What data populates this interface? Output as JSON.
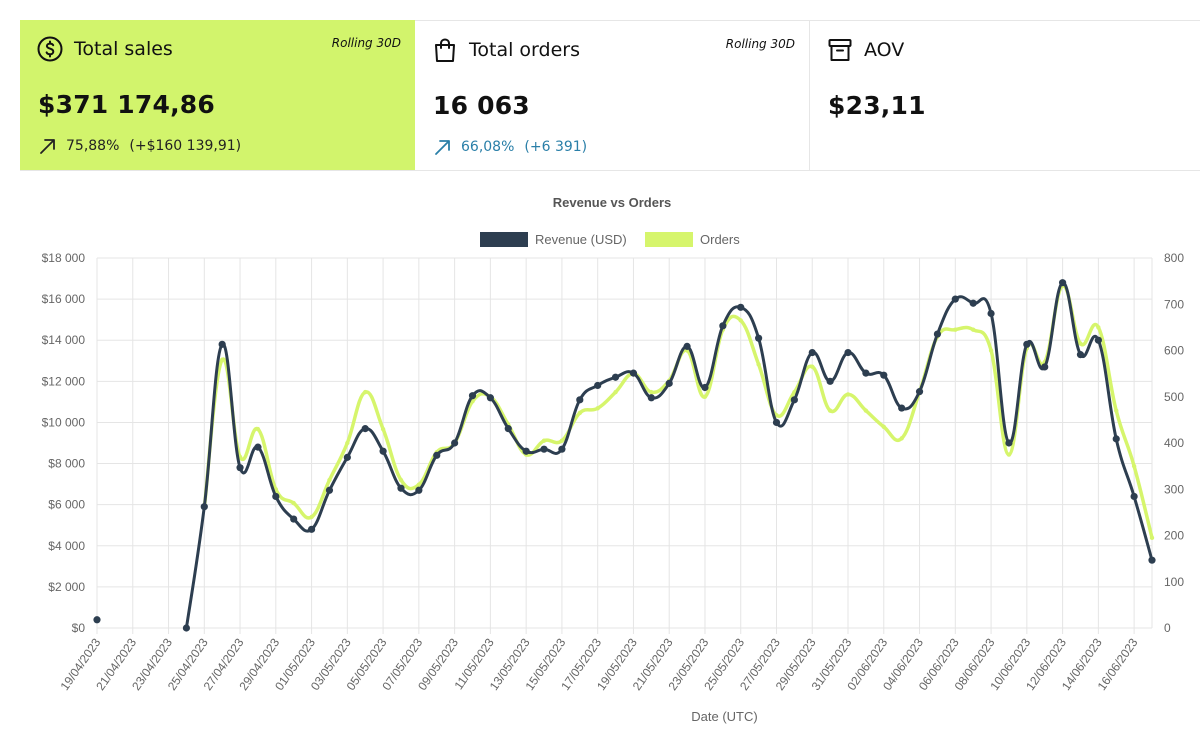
{
  "cards": [
    {
      "label": "Total sales",
      "rolling": "Rolling 30D",
      "value": "$371 174,86",
      "delta_pct": "75,88%",
      "delta_abs": "(+$160 139,91)",
      "icon": "dollar-circle-icon"
    },
    {
      "label": "Total orders",
      "rolling": "Rolling 30D",
      "value": "16 063",
      "delta_pct": "66,08%",
      "delta_abs": "(+6 391)",
      "icon": "shopping-bag-icon"
    },
    {
      "label": "AOV",
      "value": "$23,11",
      "icon": "archive-box-icon"
    }
  ],
  "colors": {
    "accent": "#d2f46c",
    "revenue": "#2d3e50",
    "orders": "#d6f56c",
    "delta_blue": "#2a7fa8"
  },
  "chart_data": {
    "type": "line",
    "title": "Revenue vs Orders",
    "xlabel": "Date (UTC)",
    "legend": [
      "Revenue (USD)",
      "Orders"
    ],
    "legend_position": "top-center",
    "y_left": {
      "min": 0,
      "max": 18000,
      "step": 2000,
      "ticks": [
        "$0",
        "$2 000",
        "$4 000",
        "$6 000",
        "$8 000",
        "$10 000",
        "$12 000",
        "$14 000",
        "$16 000",
        "$18 000"
      ]
    },
    "y_right": {
      "min": 0,
      "max": 800,
      "step": 100,
      "ticks": [
        "0",
        "100",
        "200",
        "300",
        "400",
        "500",
        "600",
        "700",
        "800"
      ]
    },
    "x_labels": [
      "19/04/2023",
      "21/04/2023",
      "23/04/2023",
      "25/04/2023",
      "27/04/2023",
      "29/04/2023",
      "01/05/2023",
      "03/05/2023",
      "05/05/2023",
      "07/05/2023",
      "09/05/2023",
      "11/05/2023",
      "13/05/2023",
      "15/05/2023",
      "17/05/2023",
      "19/05/2023",
      "21/05/2023",
      "23/05/2023",
      "25/05/2023",
      "27/05/2023",
      "29/05/2023",
      "31/05/2023",
      "02/06/2023",
      "04/06/2023",
      "06/06/2023",
      "08/06/2023",
      "10/06/2023",
      "12/06/2023",
      "14/06/2023",
      "16/06/2023"
    ],
    "series": [
      {
        "name": "Revenue (USD)",
        "axis": "left",
        "values": [
          400,
          null,
          null,
          null,
          null,
          0,
          5900,
          13800,
          7800,
          8800,
          6400,
          5300,
          4800,
          6700,
          8300,
          9700,
          8600,
          6800,
          6700,
          8400,
          9000,
          11300,
          11200,
          9700,
          8600,
          8700,
          8700,
          11100,
          11800,
          12200,
          12400,
          11200,
          11900,
          13700,
          11700,
          14700,
          15600,
          14100,
          10000,
          11100,
          13400,
          12000,
          13400,
          12400,
          12300,
          10700,
          11500,
          14300,
          16000,
          15800,
          15300,
          9000,
          13800,
          12700,
          16800,
          13300,
          14000,
          9200,
          6400,
          3300
        ]
      },
      {
        "name": "Orders",
        "axis": "right",
        "values": [
          null,
          null,
          null,
          null,
          null,
          null,
          260,
          580,
          370,
          430,
          300,
          270,
          240,
          320,
          400,
          510,
          430,
          320,
          310,
          380,
          400,
          490,
          500,
          440,
          375,
          405,
          405,
          465,
          475,
          510,
          550,
          510,
          535,
          600,
          500,
          645,
          665,
          570,
          460,
          510,
          565,
          470,
          505,
          470,
          435,
          410,
          510,
          630,
          645,
          645,
          600,
          375,
          605,
          575,
          740,
          615,
          650,
          470,
          350,
          195
        ]
      }
    ]
  }
}
